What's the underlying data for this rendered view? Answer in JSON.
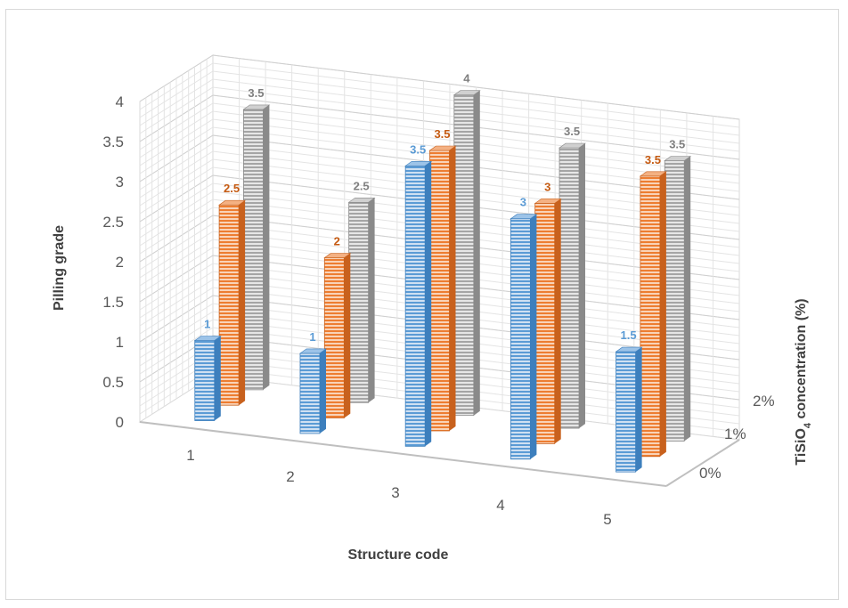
{
  "chart_data": {
    "type": "bar",
    "subtype": "3d-column",
    "categories": [
      "1",
      "2",
      "3",
      "4",
      "5"
    ],
    "series": [
      {
        "name": "0%",
        "values": [
          1,
          1,
          3.5,
          3,
          1.5
        ],
        "color": "#5b9bd5",
        "label_color": "#5b9bd5"
      },
      {
        "name": "1%",
        "values": [
          2.5,
          2,
          3.5,
          3,
          3.5
        ],
        "color": "#ed7d31",
        "label_color": "#c55a11"
      },
      {
        "name": "2%",
        "values": [
          3.5,
          2.5,
          4,
          3.5,
          3.5
        ],
        "color": "#a5a5a5",
        "label_color": "#7f7f7f"
      }
    ],
    "data_labels": [
      [
        "1",
        "1",
        "3.5",
        "3",
        "1.5"
      ],
      [
        "2.5",
        "2",
        "3.5",
        "3",
        "3.5"
      ],
      [
        "3.5",
        "2.5",
        "4",
        "3.5",
        "3.5"
      ]
    ],
    "yticks": [
      "0",
      "0.5",
      "1",
      "1.5",
      "2",
      "2.5",
      "3",
      "3.5",
      "4"
    ],
    "ylim": [
      0,
      4
    ],
    "ylabel": "Pilling grade",
    "xlabel": "Structure code",
    "zlabel_main": "TiSiO",
    "zlabel_sub": "4",
    "zlabel_rest": " concentration  (%)",
    "grid": true
  }
}
